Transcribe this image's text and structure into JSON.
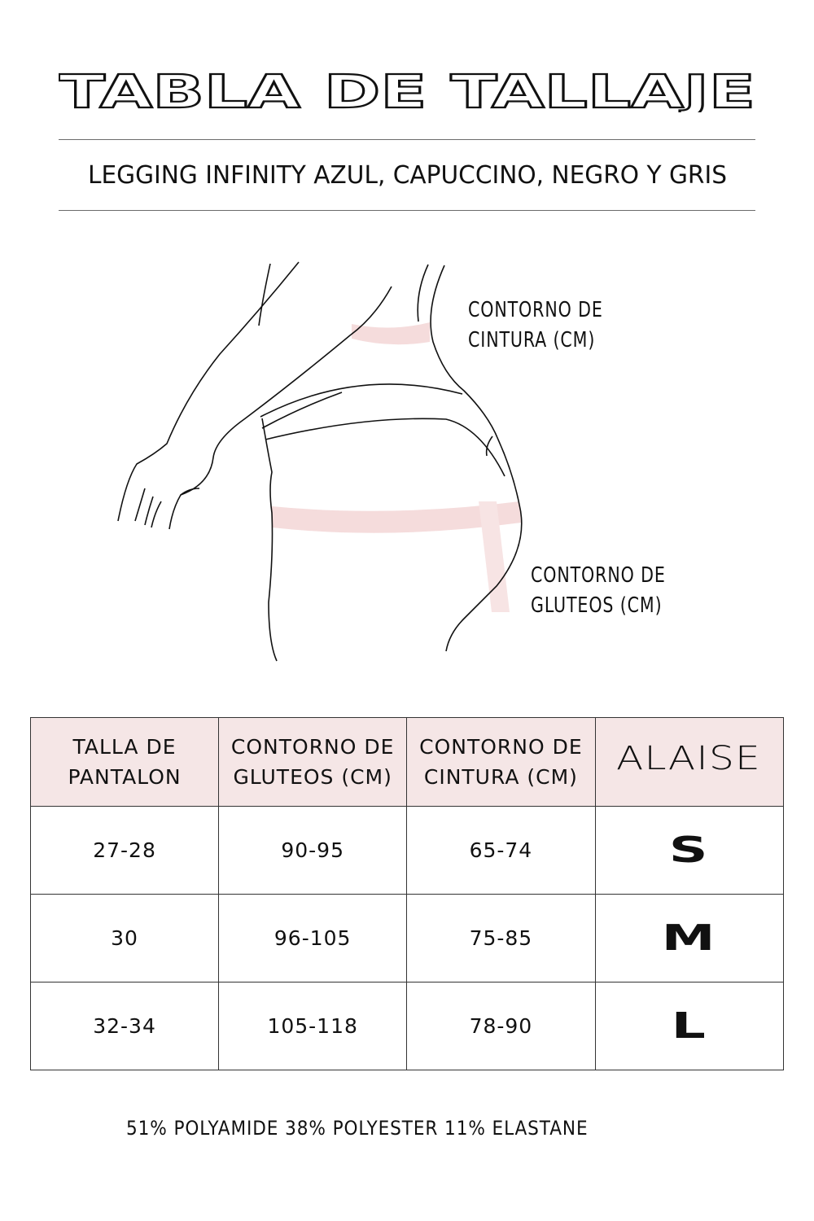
{
  "title": "TABLA DE TALLAJE",
  "subtitle": "LEGGING INFINITY AZUL, CAPUCCINO, NEGRO Y GRIS",
  "diagram": {
    "waist_label_line1": "CONTORNO DE",
    "waist_label_line2": "CINTURA (CM)",
    "hip_label_line1": "CONTORNO DE",
    "hip_label_line2": "GLUTEOS (CM)",
    "band_color": "#f5dcdc"
  },
  "table": {
    "header_color": "#f5e6e6",
    "headers": [
      {
        "line1": "TALLA DE",
        "line2": "PANTALON"
      },
      {
        "line1": "CONTORNO DE",
        "line2": "GLUTEOS (CM)"
      },
      {
        "line1": "CONTORNO DE",
        "line2": "CINTURA (CM)"
      }
    ],
    "brand_logo": "ALAISE",
    "rows": [
      {
        "pants": "27-28",
        "hips": "90-95",
        "waist": "65-74",
        "size": "S"
      },
      {
        "pants": "30",
        "hips": "96-105",
        "waist": "75-85",
        "size": "M"
      },
      {
        "pants": "32-34",
        "hips": "105-118",
        "waist": "78-90",
        "size": "L"
      }
    ]
  },
  "composition": "51% POLYAMIDE 38% POLYESTER 11% ELASTANE"
}
